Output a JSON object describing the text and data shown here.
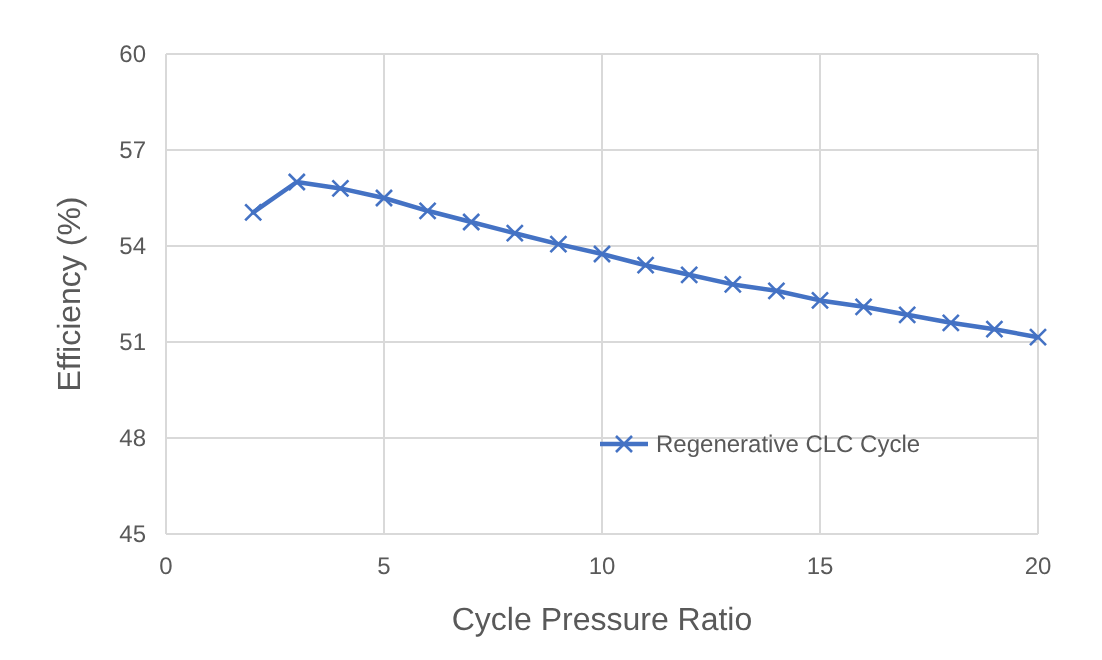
{
  "chart_data": {
    "type": "line",
    "xlabel": "Cycle Pressure Ratio",
    "ylabel": "Efficiency (%)",
    "x": [
      2,
      3,
      4,
      5,
      6,
      7,
      8,
      9,
      10,
      11,
      12,
      13,
      14,
      15,
      16,
      17,
      18,
      19,
      20
    ],
    "series": [
      {
        "name": "Regenerative CLC Cycle",
        "color": "#4472c4",
        "values": [
          55.05,
          56.0,
          55.8,
          55.5,
          55.1,
          54.75,
          54.4,
          54.06,
          53.75,
          53.4,
          53.1,
          52.8,
          52.6,
          52.3,
          52.1,
          51.85,
          51.6,
          51.4,
          51.15
        ]
      }
    ],
    "xlim": [
      0,
      20
    ],
    "xticks": [
      0,
      5,
      10,
      15,
      20
    ],
    "ylim": [
      45,
      60
    ],
    "yticks": [
      45,
      48,
      51,
      54,
      57,
      60
    ],
    "grid": true,
    "legend": "bottom right",
    "marker": "cross",
    "line_style": "solid"
  }
}
